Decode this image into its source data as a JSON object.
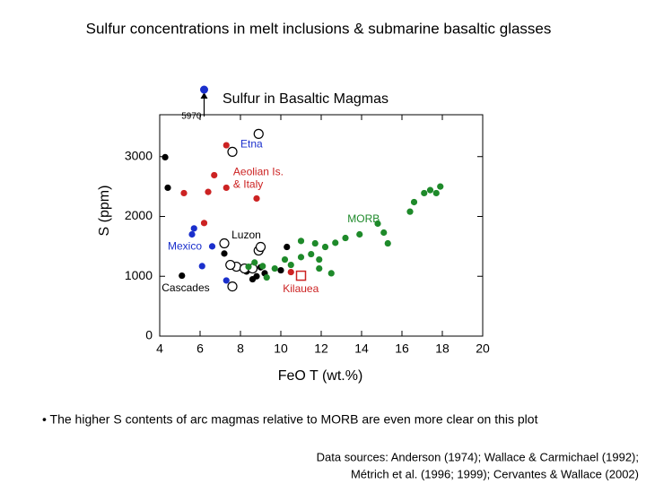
{
  "slide_title": "Sulfur concentrations in melt inclusions & submarine basaltic glasses",
  "bullet": "• The higher S contents of arc magmas relative to MORB are even more clear on this plot",
  "sources": [
    "Data sources: Anderson (1974); Wallace & Carmichael (1992);",
    "Métrich et al. (1996; 1999); Cervantes & Wallace (2002)"
  ],
  "chart_data": {
    "type": "scatter",
    "title": "Sulfur in Basaltic Magmas",
    "x_label": "FeO T (wt.%)",
    "y_label": "S (ppm)",
    "xlim": [
      4,
      20
    ],
    "xticks": [
      4,
      6,
      8,
      10,
      12,
      14,
      16,
      18,
      20
    ],
    "ylim": [
      0,
      3700
    ],
    "yticks": [
      0,
      1000,
      2000,
      3000
    ],
    "series": [
      {
        "color": "#000000",
        "marker": "filled",
        "x": [
          4.27,
          4.4,
          5.1,
          7.2,
          10.3,
          10.0,
          8.3,
          8.8,
          9.0,
          8.6,
          9.2
        ],
        "values": [
          2990,
          2480,
          1010,
          1380,
          1490,
          1100,
          1080,
          1000,
          1150,
          950,
          1050
        ]
      },
      {
        "color": "#cc2222",
        "marker": "filled",
        "x": [
          7.3,
          6.7,
          7.3,
          5.2,
          6.4,
          6.2,
          8.8,
          10.5
        ],
        "values": [
          3190,
          2690,
          2480,
          2390,
          2410,
          1890,
          2300,
          1070
        ]
      },
      {
        "color": "#cc2222",
        "marker": "open-square",
        "x": [
          11.0
        ],
        "values": [
          1010
        ]
      },
      {
        "color": "#1a2fcc",
        "marker": "filled",
        "x": [
          5.7,
          5.6,
          6.6,
          6.1,
          7.3
        ],
        "values": [
          1800,
          1700,
          1500,
          1170,
          930
        ]
      },
      {
        "color": "#000000",
        "marker": "open",
        "x": [
          8.9,
          7.6,
          8.9,
          9.0,
          7.8,
          8.2,
          7.6,
          8.6,
          7.2,
          7.5
        ],
        "values": [
          3380,
          3080,
          1430,
          1490,
          1160,
          1130,
          830,
          1130,
          1550,
          1190
        ]
      },
      {
        "color": "#1e8a2a",
        "marker": "filled",
        "x": [
          8.4,
          9.3,
          9.7,
          9.1,
          10.2,
          10.5,
          11.0,
          11.5,
          11.9,
          11.9,
          11.0,
          11.7,
          12.2,
          12.7,
          13.2,
          13.9,
          12.5,
          14.8,
          15.1,
          15.3,
          16.4,
          17.1,
          17.4,
          17.7,
          17.9,
          16.6,
          8.7
        ],
        "values": [
          1160,
          980,
          1130,
          1170,
          1280,
          1190,
          1320,
          1370,
          1280,
          1130,
          1590,
          1550,
          1490,
          1560,
          1640,
          1700,
          1050,
          1880,
          1730,
          1550,
          2080,
          2390,
          2440,
          2390,
          2500,
          2240,
          1230
        ]
      }
    ],
    "off_scale_point": {
      "x": 6.2,
      "y": 5970,
      "label": "5970",
      "color": "#1a2fcc"
    },
    "annotations": [
      {
        "text": "Etna",
        "x": 8.0,
        "y": 3200,
        "color": "#1a2fcc"
      },
      {
        "text": "Aeolian Is.",
        "x": 7.64,
        "y": 2740,
        "color": "#cc2222"
      },
      {
        "text": "& Italy",
        "x": 7.64,
        "y": 2530,
        "color": "#cc2222"
      },
      {
        "text": "MORB",
        "x": 13.3,
        "y": 1950,
        "color": "#1e8a2a"
      },
      {
        "text": "Luzon",
        "x": 7.56,
        "y": 1680,
        "color": "#000000"
      },
      {
        "text": "Mexico",
        "x": 4.4,
        "y": 1490,
        "color": "#1a2fcc"
      },
      {
        "text": "Cascades",
        "x": 4.1,
        "y": 800,
        "color": "#000000"
      },
      {
        "text": "Kilauea",
        "x": 10.1,
        "y": 780,
        "color": "#cc2222"
      }
    ]
  }
}
